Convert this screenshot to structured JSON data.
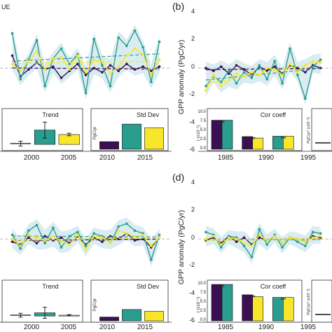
{
  "colors": {
    "purple": "#3b0f52",
    "teal": "#2a9d8f",
    "yellow": "#f7e629",
    "band": "#cfe7ee",
    "grid": "#aaaaaa"
  },
  "panels": [
    {
      "letter": "",
      "corner_label": "UE"
    },
    {
      "letter": "(b)"
    },
    {
      "letter": ""
    },
    {
      "letter": "(d)"
    }
  ],
  "axes": {
    "gpp_ylabel": "GPP anomaly (PgC/yr)",
    "y_ticks": [
      "4",
      "2",
      "0",
      "-2",
      "-4",
      "-6"
    ],
    "x_ticks_left": [
      "2000",
      "2005",
      "2010",
      "2015"
    ],
    "x_ticks_right": [
      "1985",
      "1990",
      "1995"
    ]
  },
  "insets": {
    "trend_title": "Trend",
    "stddev_title": "Std Dev",
    "stddev_ylabel": "PgC/yr",
    "corcoef_title": "Cor coeff",
    "corcoef_ylabel": "r (x10⁻¹)",
    "corcoef_ticks": [
      "10.0",
      "7.5",
      "5.0",
      "2.5",
      "0.0"
    ],
    "right_partial_ylabel": "PgC/yr² (x10⁻²)",
    "sig_marker": "**"
  },
  "chart_data": [
    {
      "type": "line",
      "panel": "a",
      "x": [
        1998,
        1999,
        2000,
        2001,
        2002,
        2003,
        2004,
        2005,
        2006,
        2007,
        2008,
        2009,
        2010,
        2011,
        2012,
        2013,
        2014,
        2015,
        2016
      ],
      "series": [
        {
          "values": [
            0.9,
            -0.6,
            -0.1,
            0.4,
            -0.1,
            0.1,
            -0.7,
            -0.2,
            0.3,
            -0.5,
            0.0,
            -0.3,
            0.2,
            -0.2,
            0.3,
            -0.1,
            0.1,
            -0.2,
            0.1
          ]
        },
        {
          "values": [
            2.5,
            -0.8,
            0.6,
            2.0,
            -1.3,
            0.7,
            1.4,
            0.3,
            1.0,
            -1.8,
            2.1,
            0.2,
            -1.3,
            2.2,
            1.6,
            2.7,
            1.5,
            -1.0,
            1.9
          ]
        },
        {
          "values": [
            0.3,
            -0.2,
            0.5,
            1.2,
            -0.1,
            0.7,
            0.8,
            -0.1,
            0.9,
            -0.3,
            0.6,
            0.5,
            -0.4,
            0.1,
            0.9,
            1.4,
            1.0,
            -0.5,
            0.6
          ]
        }
      ],
      "ylim": [
        -6,
        4
      ]
    },
    {
      "type": "line",
      "panel": "b",
      "x": [
        1982,
        1983,
        1984,
        1985,
        1986,
        1987,
        1988,
        1989,
        1990,
        1991,
        1992,
        1993,
        1994,
        1995,
        1996,
        1997
      ],
      "series": [
        {
          "values": [
            0.0,
            -0.2,
            0.1,
            -0.4,
            0.2,
            -0.1,
            -0.5,
            0.1,
            -0.2,
            0.1,
            -0.4,
            0.2,
            0.0,
            -0.3,
            0.2,
            0.0
          ]
        },
        {
          "values": [
            -1.3,
            -0.6,
            -1.0,
            -0.2,
            -1.1,
            -0.3,
            -0.7,
            0.2,
            -0.8,
            0.5,
            -1.1,
            1.4,
            -0.5,
            -2.2,
            0.1,
            0.6
          ]
        },
        {
          "values": [
            -1.6,
            -0.5,
            -1.3,
            -0.9,
            -0.4,
            -0.6,
            -0.3,
            -0.5,
            0.0,
            -0.1,
            -0.5,
            0.3,
            -0.3,
            0.2,
            0.5,
            0.4
          ]
        }
      ],
      "ylim": [
        -6,
        4
      ]
    },
    {
      "type": "line",
      "panel": "c",
      "x": [
        1998,
        1999,
        2000,
        2001,
        2002,
        2003,
        2004,
        2005,
        2006,
        2007,
        2008,
        2009,
        2010,
        2011,
        2012,
        2013,
        2014,
        2015,
        2016
      ],
      "series": [
        {
          "values": [
            -0.2,
            -0.4,
            0.1,
            -0.3,
            0.2,
            -0.1,
            0.1,
            -0.3,
            0.2,
            -0.4,
            0.1,
            -0.2,
            0.2,
            0.0,
            0.4,
            -0.1,
            0.0,
            -0.6,
            0.1
          ]
        },
        {
          "values": [
            0.3,
            -0.7,
            0.6,
            1.0,
            -0.3,
            0.8,
            -0.6,
            0.2,
            0.5,
            -0.5,
            0.4,
            0.2,
            -0.3,
            0.9,
            1.1,
            0.6,
            0.4,
            -1.5,
            0.3
          ]
        },
        {
          "values": [
            0.0,
            -0.5,
            0.3,
            0.1,
            -0.1,
            0.2,
            -0.2,
            -0.4,
            0.3,
            -0.8,
            0.2,
            0.1,
            -0.3,
            0.6,
            0.4,
            0.2,
            0.3,
            -0.5,
            0.1
          ]
        }
      ],
      "ylim": [
        -6,
        4
      ]
    },
    {
      "type": "line",
      "panel": "d",
      "x": [
        1982,
        1983,
        1984,
        1985,
        1986,
        1987,
        1988,
        1989,
        1990,
        1991,
        1992,
        1993,
        1994,
        1995,
        1996,
        1997
      ],
      "series": [
        {
          "values": [
            -0.1,
            0.1,
            -0.3,
            0.2,
            -0.2,
            0.1,
            -0.4,
            0.1,
            -0.1,
            0.2,
            -0.3,
            0.1,
            0.0,
            -0.2,
            0.2,
            0.1
          ]
        },
        {
          "values": [
            0.5,
            0.3,
            -0.6,
            0.2,
            0.1,
            -0.5,
            -1.3,
            0.7,
            -0.4,
            0.3,
            -0.6,
            0.1,
            -0.2,
            -0.5,
            0.5,
            0.4
          ]
        },
        {
          "values": [
            0.0,
            0.2,
            -0.4,
            0.1,
            0.0,
            -0.3,
            -0.5,
            0.3,
            -0.1,
            0.2,
            -0.3,
            0.1,
            0.0,
            -0.2,
            0.1,
            0.2
          ]
        }
      ],
      "ylim": [
        -6,
        4
      ]
    },
    {
      "type": "bar",
      "inset": "trend_upper",
      "values": [
        0.05,
        0.9,
        0.62
      ],
      "errors": [
        0.15,
        0.5,
        0.08
      ],
      "ylim": [
        -0.3,
        1.5
      ]
    },
    {
      "type": "bar",
      "inset": "stddev_upper",
      "values": [
        0.3,
        1.0,
        0.85
      ],
      "ylim": [
        0,
        1.2
      ]
    },
    {
      "type": "bar",
      "inset": "corcoef_upper",
      "values": [
        7.8,
        7.8,
        3.4,
        3.0,
        3.5,
        3.5
      ],
      "ylim": [
        0,
        10
      ]
    },
    {
      "type": "bar",
      "inset": "trend_lower",
      "values": [
        0.05,
        0.2,
        0.05
      ],
      "errors": [
        0.12,
        0.35,
        0.04
      ],
      "ylim": [
        -0.3,
        1.5
      ]
    },
    {
      "type": "bar",
      "inset": "stddev_lower",
      "values": [
        0.15,
        0.45,
        0.38
      ],
      "ylim": [
        0,
        1.2
      ]
    },
    {
      "type": "bar",
      "inset": "corcoef_lower",
      "values": [
        9.8,
        9.8,
        7.0,
        6.5,
        6.3,
        6.3
      ],
      "ylim": [
        0,
        10
      ]
    }
  ]
}
